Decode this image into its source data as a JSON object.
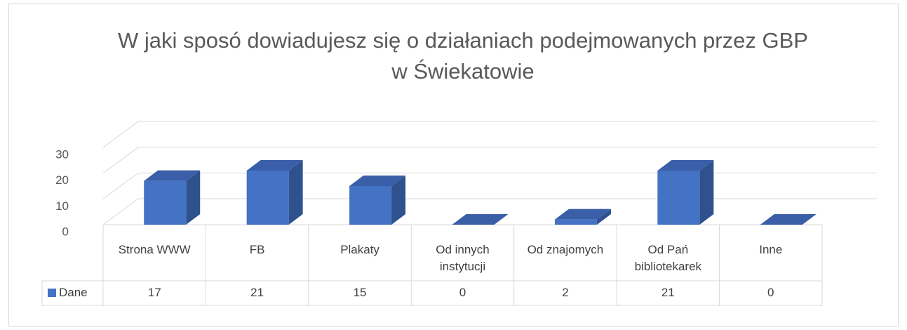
{
  "chart_data": {
    "type": "bar3d",
    "title": "W jaki sposó dowiadujesz się o działaniach podejmowanych przez GBP w Świekatowie",
    "categories": [
      "Strona WWW",
      "FB",
      "Plakaty",
      "Od innych instytucji",
      "Od znajomych",
      "Od Pań bibliotekarek",
      "Inne"
    ],
    "series": [
      {
        "name": "Dane",
        "color": "#4472c4",
        "values": [
          17,
          21,
          15,
          0,
          2,
          21,
          0
        ]
      }
    ],
    "ylim": [
      0,
      30
    ],
    "yticks": [
      0,
      10,
      20,
      30
    ],
    "grid": true
  }
}
